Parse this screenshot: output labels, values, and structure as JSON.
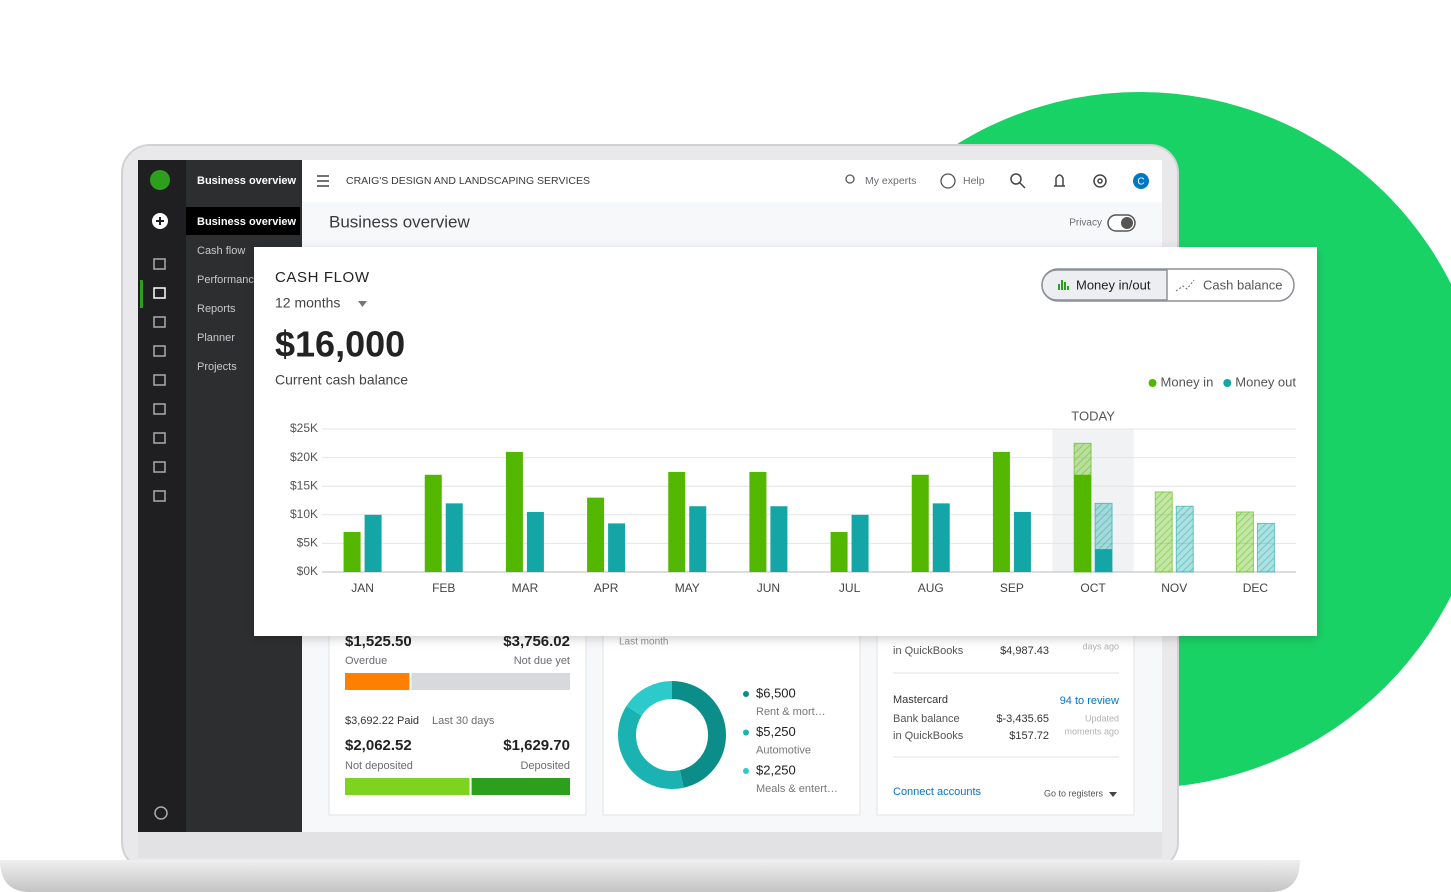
{
  "header": {
    "company": "CRAIG'S DESIGN AND LANDSCAPING SERVICES",
    "my_experts": "My experts",
    "help": "Help",
    "avatar": "C"
  },
  "sidebar": {
    "title": "Business overview",
    "items": [
      "Business overview",
      "Cash flow",
      "Performance",
      "Reports",
      "Planner",
      "Projects"
    ]
  },
  "page": {
    "title": "Business overview",
    "privacy": "Privacy"
  },
  "cash_flow": {
    "title": "CASH FLOW",
    "period": "12 months",
    "balance": "$16,000",
    "balance_label": "Current cash balance",
    "toggles": [
      "Money in/out",
      "Cash balance"
    ]
  },
  "chart_data": {
    "type": "bar",
    "categories": [
      "JAN",
      "FEB",
      "MAR",
      "APR",
      "MAY",
      "JUN",
      "JUL",
      "AUG",
      "SEP",
      "OCT",
      "NOV",
      "DEC"
    ],
    "series": [
      {
        "name": "Money in",
        "color": "#53b700",
        "values": [
          7000,
          17000,
          21000,
          13000,
          17500,
          17500,
          7000,
          17000,
          21000,
          17000,
          null,
          null
        ],
        "projected": [
          null,
          null,
          null,
          null,
          null,
          null,
          null,
          null,
          null,
          22500,
          14000,
          10500
        ]
      },
      {
        "name": "Money out",
        "color": "#14a6a6",
        "values": [
          10000,
          12000,
          10500,
          8500,
          11500,
          11500,
          10000,
          12000,
          10500,
          4000,
          null,
          null
        ],
        "projected": [
          null,
          null,
          null,
          null,
          null,
          null,
          null,
          null,
          null,
          12000,
          11500,
          8500
        ]
      }
    ],
    "ylim": [
      0,
      25000
    ],
    "yticks": [
      {
        "value": 0,
        "label": "$0K"
      },
      {
        "value": 5000,
        "label": "$5K"
      },
      {
        "value": 10000,
        "label": "$10K"
      },
      {
        "value": 15000,
        "label": "$15K"
      },
      {
        "value": 20000,
        "label": "$20K"
      },
      {
        "value": 25000,
        "label": "$25K"
      }
    ],
    "grid": true,
    "legend": "top-right",
    "annotation": "TODAY"
  },
  "invoices": {
    "overdue": {
      "value": 1525.5,
      "label": "$1,525.50",
      "caption": "Overdue",
      "color": "#ff8000"
    },
    "not_due": {
      "value": 3756.02,
      "label": "$3,756.02",
      "caption": "Not due yet",
      "color": "#d8d9dc"
    },
    "paid": "$3,692.22 Paid",
    "paid_period": "Last 30 days",
    "not_deposited": {
      "value": 2062.52,
      "label": "$2,062.52",
      "caption": "Not deposited",
      "color": "#7ed321"
    },
    "deposited": {
      "value": 1629.7,
      "label": "$1,629.70",
      "caption": "Deposited",
      "color": "#2ca01c"
    }
  },
  "expenses": {
    "period": "Last month",
    "items": [
      {
        "value": 6500,
        "label": "$6,500",
        "name": "Rent & mort…",
        "color": "#0b8e8a"
      },
      {
        "value": 5250,
        "label": "$5,250",
        "name": "Automotive",
        "color": "#1ab3b1"
      },
      {
        "value": 2250,
        "label": "$2,250",
        "name": "Meals & entert…",
        "color": "#2ccaca"
      }
    ]
  },
  "bank": {
    "first_row": {
      "label": "in QuickBooks",
      "amount": "$4,987.43",
      "updated": "days ago"
    },
    "account": "Mastercard",
    "review": "94 to review",
    "rows": [
      [
        "Bank balance",
        "$-3,435.65",
        "Updated"
      ],
      [
        "in QuickBooks",
        "$157.72",
        "moments ago"
      ]
    ],
    "connect": "Connect accounts",
    "registers": "Go to registers"
  }
}
